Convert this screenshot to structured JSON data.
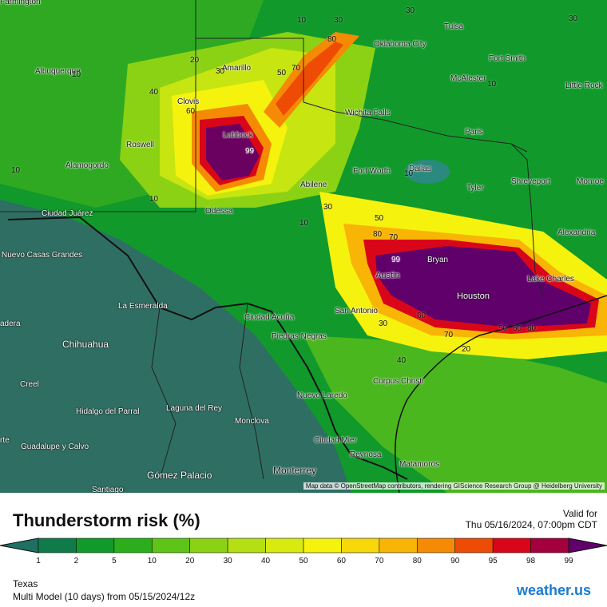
{
  "map": {
    "attribution": "Map data © OpenStreetMap contributors, rendering GIScience Research Group @ Heidelberg University",
    "cities": [
      {
        "name": "Albuquerque"
      },
      {
        "name": "Amarillo"
      },
      {
        "name": "Clovis"
      },
      {
        "name": "Roswell"
      },
      {
        "name": "Alamogordo"
      },
      {
        "name": "Lubbock"
      },
      {
        "name": "Odessa"
      },
      {
        "name": "Abilene"
      },
      {
        "name": "Ciudad Juárez"
      },
      {
        "name": "Nuevo Casas Grandes"
      },
      {
        "name": "La Esmeralda"
      },
      {
        "name": "Chihuahua"
      },
      {
        "name": "Creel"
      },
      {
        "name": "Hidalgo del Parral"
      },
      {
        "name": "Laguna del Rey"
      },
      {
        "name": "Monclova"
      },
      {
        "name": "Guadalupe y Calvo"
      },
      {
        "name": "Gómez Palacio"
      },
      {
        "name": "Santiago"
      },
      {
        "name": "Monterrey"
      },
      {
        "name": "Ciudad Acuña"
      },
      {
        "name": "Piedras Negras"
      },
      {
        "name": "Nuevo Laredo"
      },
      {
        "name": "Ciudad Mier"
      },
      {
        "name": "Reynosa"
      },
      {
        "name": "Matamoros"
      },
      {
        "name": "San Antonio"
      },
      {
        "name": "Corpus Christi"
      },
      {
        "name": "Austin"
      },
      {
        "name": "Bryan"
      },
      {
        "name": "Houston"
      },
      {
        "name": "Lake Charles"
      },
      {
        "name": "Fort Worth"
      },
      {
        "name": "Dallas"
      },
      {
        "name": "Wichita Falls"
      },
      {
        "name": "Oklahoma City"
      },
      {
        "name": "Tulsa"
      },
      {
        "name": "Fort Smith"
      },
      {
        "name": "McAlester"
      },
      {
        "name": "Little Rock"
      },
      {
        "name": "Paris"
      },
      {
        "name": "Tyler"
      },
      {
        "name": "Shreveport"
      },
      {
        "name": "Monroe"
      },
      {
        "name": "Alexandria"
      },
      {
        "name": "Farmington"
      },
      {
        "name": "adera"
      },
      {
        "name": "rte"
      }
    ],
    "contour_labels": [
      "10",
      "20",
      "30",
      "40",
      "50",
      "60",
      "70",
      "80",
      "99"
    ]
  },
  "legend": {
    "title": "Thunderstorm risk (%)",
    "valid_label": "Valid for",
    "valid_time": "Thu 05/16/2024, 07:00pm CDT",
    "ticks": [
      "1",
      "2",
      "5",
      "10",
      "20",
      "30",
      "40",
      "50",
      "60",
      "70",
      "80",
      "90",
      "95",
      "98",
      "99"
    ],
    "colors": [
      "#0f7a4a",
      "#109a2a",
      "#2aae1c",
      "#5ec417",
      "#8cd214",
      "#b4df12",
      "#d9ea10",
      "#f5f20e",
      "#f8d70b",
      "#f8b506",
      "#f58a05",
      "#ee4b04",
      "#d9061a",
      "#a5003e",
      "#7c0053",
      "#5f006b"
    ]
  },
  "footer": {
    "region": "Texas",
    "model_line": "Multi Model (10 days) from 05/15/2024/12z",
    "brand": "weather.us"
  }
}
